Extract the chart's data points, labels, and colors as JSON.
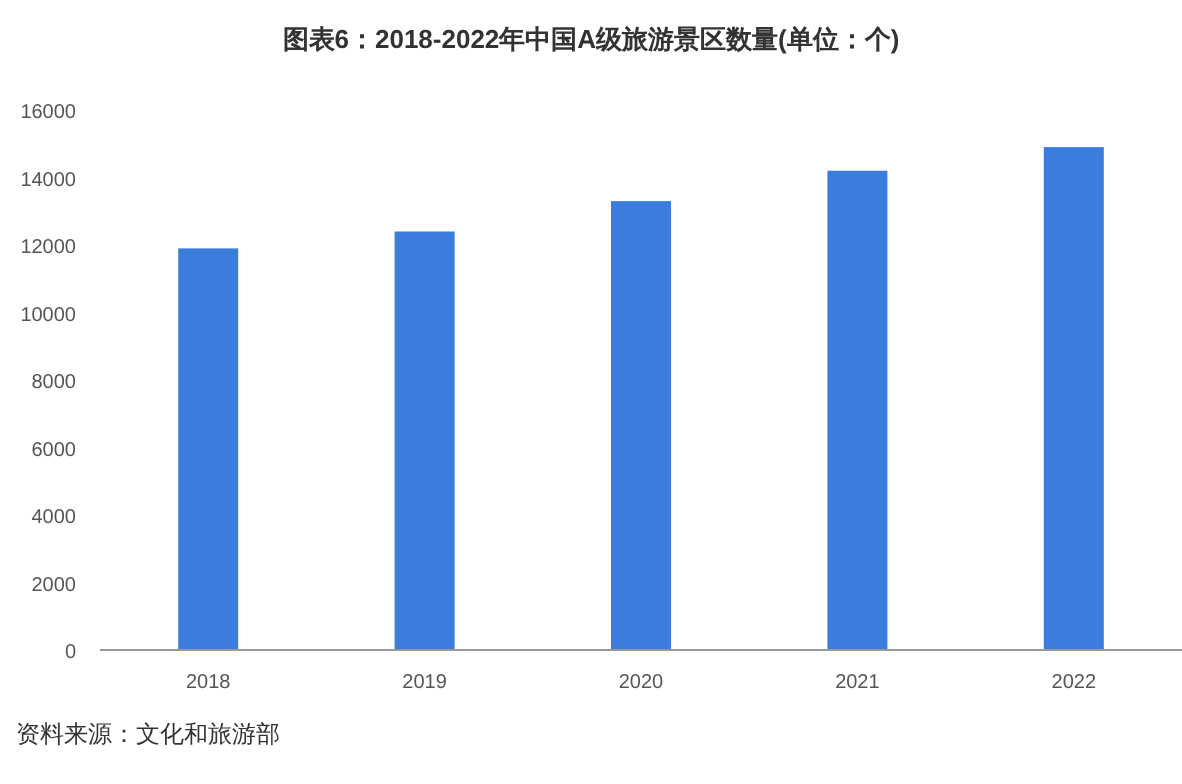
{
  "chart_data": {
    "type": "bar",
    "title": "图表6：2018-2022年中国A级旅游景区数量(单位：个)",
    "categories": [
      "2018",
      "2019",
      "2020",
      "2021",
      "2022"
    ],
    "values": [
      11900,
      12400,
      13300,
      14200,
      14900
    ],
    "color": "#3b7ddd",
    "ylim": [
      0,
      16000
    ],
    "yticks": [
      0,
      2000,
      4000,
      6000,
      8000,
      10000,
      12000,
      14000,
      16000
    ],
    "annotations": [
      "资料来源：文化和旅游部"
    ]
  }
}
